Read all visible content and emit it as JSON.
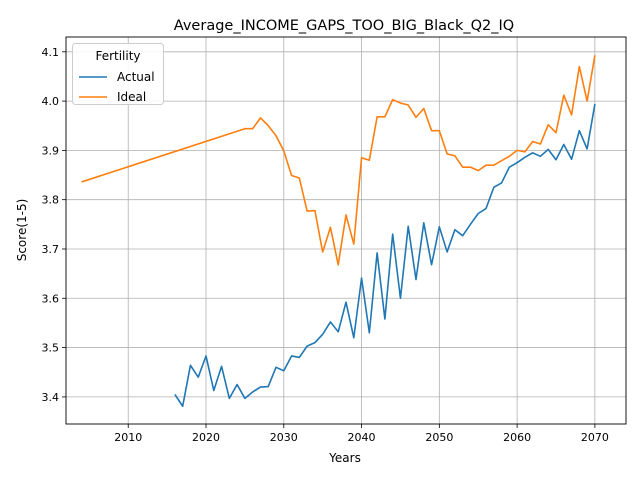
{
  "chart_data": {
    "type": "line",
    "title": "Average_INCOME_GAPS_TOO_BIG_Black_Q2_IQ",
    "xlabel": "Years",
    "ylabel": "Score(1-5)",
    "xlim": [
      2002,
      2074
    ],
    "ylim": [
      3.345,
      4.13
    ],
    "x_ticks": [
      2010,
      2020,
      2030,
      2040,
      2050,
      2060,
      2070
    ],
    "y_ticks": [
      3.4,
      3.5,
      3.6,
      3.7,
      3.8,
      3.9,
      4.0,
      4.1
    ],
    "grid": true,
    "legend": {
      "title": "Fertility",
      "placement": "top-left"
    },
    "series": [
      {
        "name": "Actual",
        "color": "#1f77b4",
        "x": [
          2016,
          2017,
          2018,
          2019,
          2020,
          2021,
          2022,
          2023,
          2024,
          2025,
          2026,
          2027,
          2028,
          2029,
          2030,
          2031,
          2032,
          2033,
          2034,
          2035,
          2036,
          2037,
          2038,
          2039,
          2040,
          2041,
          2042,
          2043,
          2044,
          2045,
          2046,
          2047,
          2048,
          2049,
          2050,
          2051,
          2052,
          2053,
          2054,
          2055,
          2056,
          2057,
          2058,
          2059,
          2060,
          2061,
          2062,
          2063,
          2064,
          2065,
          2066,
          2067,
          2068,
          2069,
          2070
        ],
        "values": [
          3.405,
          3.381,
          3.464,
          3.44,
          3.483,
          3.413,
          3.462,
          3.397,
          3.425,
          3.397,
          3.41,
          3.42,
          3.421,
          3.46,
          3.453,
          3.483,
          3.48,
          3.503,
          3.51,
          3.527,
          3.552,
          3.532,
          3.592,
          3.52,
          3.641,
          3.53,
          3.692,
          3.558,
          3.73,
          3.6,
          3.746,
          3.638,
          3.753,
          3.668,
          3.745,
          3.694,
          3.739,
          3.727,
          3.75,
          3.772,
          3.782,
          3.825,
          3.834,
          3.866,
          3.875,
          3.886,
          3.895,
          3.888,
          3.902,
          3.881,
          3.912,
          3.882,
          3.94,
          3.903,
          3.994
        ]
      },
      {
        "name": "Ideal",
        "color": "#ff7f0e",
        "x": [
          2004,
          2025,
          2026,
          2027,
          2028,
          2029,
          2030,
          2031,
          2032,
          2033,
          2034,
          2035,
          2036,
          2037,
          2038,
          2039,
          2040,
          2041,
          2042,
          2043,
          2044,
          2045,
          2046,
          2047,
          2048,
          2049,
          2050,
          2051,
          2052,
          2053,
          2054,
          2055,
          2056,
          2057,
          2058,
          2059,
          2060,
          2061,
          2062,
          2063,
          2064,
          2065,
          2066,
          2067,
          2068,
          2069,
          2070
        ],
        "values": [
          3.836,
          3.944,
          3.944,
          3.966,
          3.95,
          3.93,
          3.899,
          3.849,
          3.844,
          3.777,
          3.778,
          3.694,
          3.744,
          3.668,
          3.769,
          3.71,
          3.885,
          3.88,
          3.968,
          3.968,
          4.003,
          3.996,
          3.992,
          3.967,
          3.985,
          3.94,
          3.94,
          3.893,
          3.889,
          3.866,
          3.866,
          3.859,
          3.87,
          3.87,
          3.879,
          3.888,
          3.9,
          3.897,
          3.918,
          3.913,
          3.952,
          3.936,
          4.012,
          3.972,
          4.07,
          4.0,
          4.093
        ]
      }
    ]
  }
}
